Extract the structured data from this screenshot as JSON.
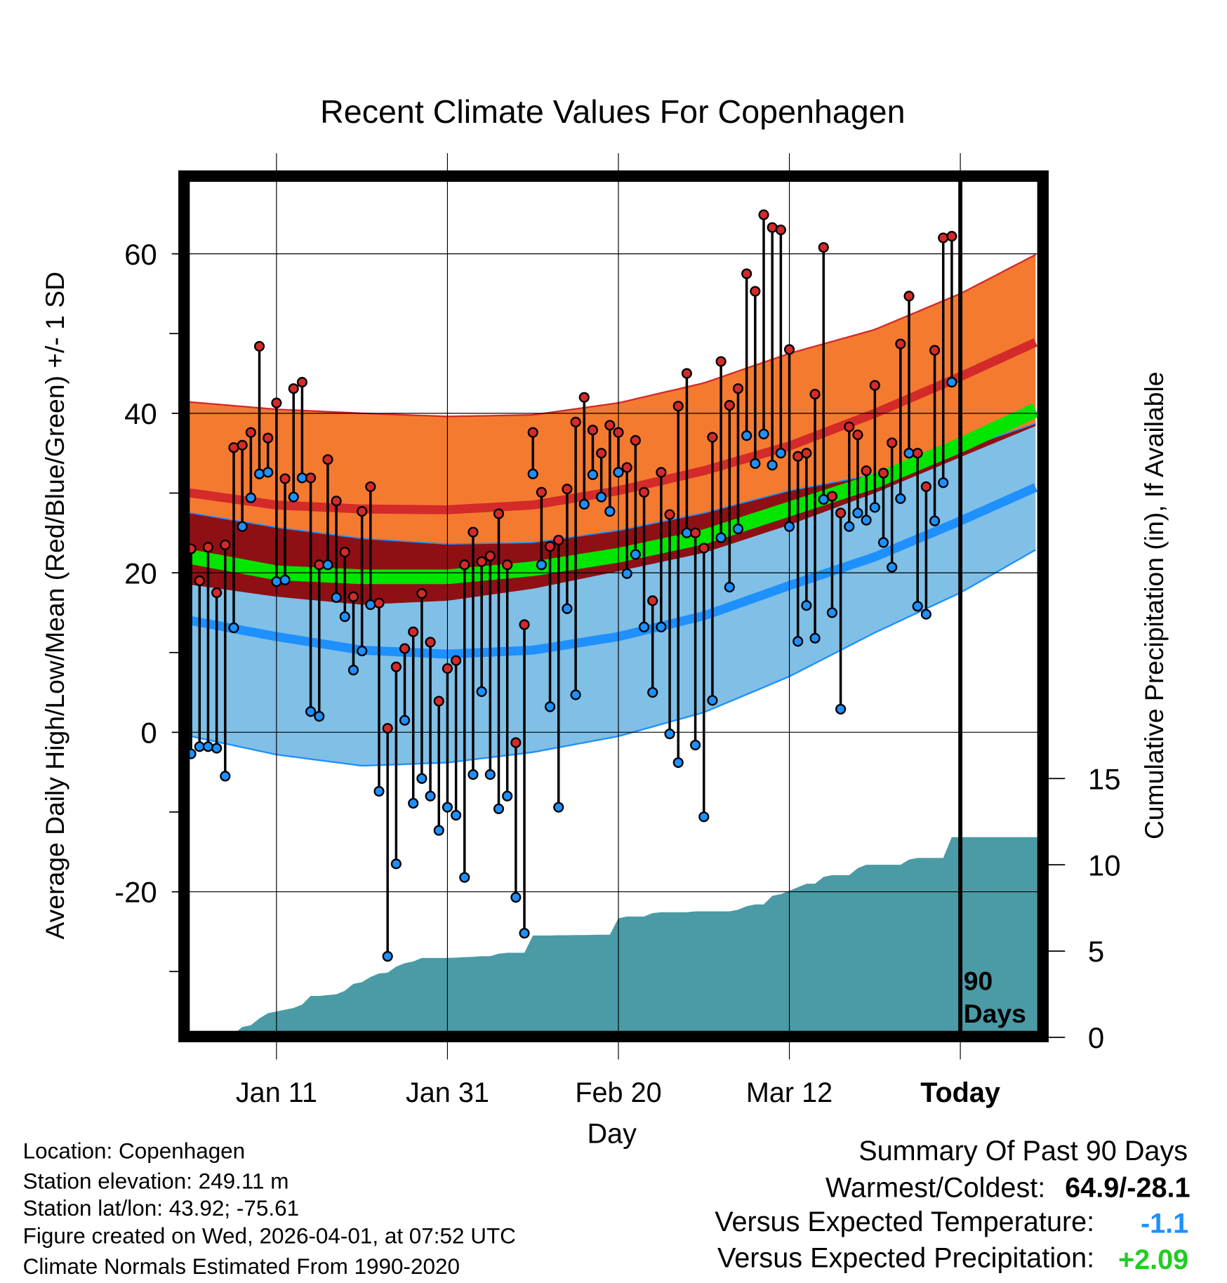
{
  "chart_data": {
    "type": "line",
    "title": "Recent Climate Values For Copenhagen",
    "xlabel": "Day",
    "ylabel": "Average Daily High/Low/Mean (Red/Blue/Green) +/- 1 SD",
    "y2label": "Cumulative Precipitation (in), If Available",
    "ylim": [
      -37.5,
      69
    ],
    "y2lim": [
      0,
      50
    ],
    "grid": true,
    "x_ticks": [
      {
        "day": 10,
        "label": "Jan 11"
      },
      {
        "day": 30,
        "label": "Jan 31"
      },
      {
        "day": 50,
        "label": "Feb 20"
      },
      {
        "day": 70,
        "label": "Mar 12"
      },
      {
        "day": 90,
        "label": "Today"
      }
    ],
    "y_ticks": [
      {
        "value": 60,
        "label": "60"
      },
      {
        "value": 40,
        "label": "40"
      },
      {
        "value": 20,
        "label": "20"
      },
      {
        "value": 0,
        "label": "0"
      },
      {
        "value": -20,
        "label": "-20"
      }
    ],
    "y_minor_ticks": [
      50,
      30,
      10,
      -10,
      -30
    ],
    "y2_ticks": [
      {
        "value": 0,
        "label": "0"
      },
      {
        "value": 5,
        "label": "5"
      },
      {
        "value": 10,
        "label": "10"
      },
      {
        "value": 15,
        "label": "15"
      }
    ],
    "today_label": [
      "90",
      "Days"
    ],
    "highs": [
      23,
      19,
      23.2,
      17.5,
      23.5,
      35.7,
      36,
      37.6,
      48.4,
      36.9,
      41.3,
      31.8,
      43.1,
      43.9,
      31.9,
      21,
      34.2,
      29,
      22.6,
      17,
      27.7,
      30.8,
      16.2,
      0.5,
      8.2,
      10.5,
      12.6,
      17.4,
      11.3,
      3.9,
      8,
      9,
      21,
      25.1,
      21.4,
      22.1,
      27.4,
      21,
      -1.3,
      13.5,
      37.6,
      30.1,
      23.3,
      24.1,
      30.5,
      38.9,
      42,
      37.9,
      35,
      38.5,
      37.6,
      33.2,
      36.6,
      30.1,
      16.5,
      32.6,
      27.3,
      40.9,
      45,
      25,
      23.1,
      37,
      46.5,
      41,
      43.1,
      57.5,
      55.3,
      64.9,
      63.3,
      63,
      48,
      34.6,
      35,
      42.4,
      60.8,
      29.6,
      27.5,
      38.3,
      37.3,
      32.8,
      43.5,
      32.5,
      36.3,
      48.7,
      54.7,
      35,
      30.8,
      47.9,
      62,
      62.2
    ],
    "lows": [
      -2.7,
      -1.8,
      -1.8,
      -2,
      -5.5,
      13.1,
      25.8,
      29.4,
      32.4,
      32.6,
      18.9,
      19.1,
      29.5,
      31.9,
      2.6,
      2,
      21,
      16.9,
      14.5,
      7.8,
      10.2,
      16,
      -7.4,
      -28.1,
      -16.5,
      1.5,
      -8.9,
      -5.8,
      -8,
      -12.3,
      -9.4,
      -10.4,
      -18.2,
      -5.3,
      5.1,
      -5.3,
      -9.6,
      -8,
      -20.7,
      -25.2,
      32.4,
      21,
      3.2,
      -9.4,
      15.5,
      4.7,
      28.6,
      32.3,
      29.5,
      27.7,
      32.6,
      19.9,
      22.3,
      13.2,
      5,
      13.2,
      -0.2,
      -3.8,
      25,
      -1.6,
      -10.6,
      4,
      24.4,
      18.2,
      25.5,
      37.2,
      33.7,
      37.4,
      33.5,
      35,
      25.8,
      11.4,
      15.9,
      11.8,
      29.2,
      15,
      2.9,
      25.8,
      27.5,
      26.6,
      28.2,
      23.8,
      20.7,
      29.3,
      35,
      15.8,
      14.8,
      26.5,
      31.3,
      43.9
    ],
    "precip_cumulative": [
      0,
      0,
      0,
      0,
      0,
      0.2,
      0.6,
      0.7,
      1.1,
      1.4,
      1.5,
      1.6,
      1.7,
      1.9,
      2.4,
      2.4,
      2.45,
      2.5,
      2.7,
      3.1,
      3.2,
      3.5,
      3.7,
      3.75,
      4.1,
      4.3,
      4.4,
      4.6,
      4.6,
      4.6,
      4.6,
      4.62,
      4.65,
      4.67,
      4.7,
      4.7,
      4.85,
      4.9,
      4.9,
      4.9,
      5.9,
      5.9,
      5.9,
      5.92,
      5.92,
      5.93,
      5.93,
      5.94,
      5.95,
      5.95,
      6.9,
      7.0,
      7.0,
      7.0,
      7.2,
      7.25,
      7.25,
      7.25,
      7.25,
      7.3,
      7.3,
      7.3,
      7.3,
      7.3,
      7.4,
      7.6,
      7.7,
      7.7,
      8.2,
      8.3,
      8.5,
      8.7,
      8.9,
      8.9,
      9.3,
      9.4,
      9.4,
      9.4,
      9.8,
      10.0,
      10.0,
      10.0,
      10.0,
      10.0,
      10.3,
      10.4,
      10.4,
      10.4,
      10.4,
      11.6
    ],
    "normals": {
      "days": [
        0,
        10,
        20,
        30,
        40,
        50,
        60,
        70,
        80,
        90,
        99
      ],
      "high_mean": [
        30,
        28.5,
        28,
        27.9,
        28.5,
        30.3,
        32.8,
        35.9,
        40,
        44.6,
        49
      ],
      "high_upper": [
        41.4,
        40.5,
        40,
        39.6,
        39.8,
        41.3,
        43.8,
        47.5,
        50.5,
        55,
        60
      ],
      "high_lower": [
        18.5,
        17,
        16,
        16.5,
        18,
        20.2,
        22.5,
        26,
        30,
        34.5,
        38.5
      ],
      "mean": [
        22,
        20,
        19.5,
        19.5,
        20.5,
        22.2,
        24.5,
        28,
        31.5,
        36,
        40.5
      ],
      "low_upper": [
        27.5,
        25.7,
        24.3,
        23.6,
        23.8,
        25.3,
        27.5,
        30.3,
        32.3,
        35.5,
        38.8
      ],
      "low_mean": [
        14,
        12,
        10.3,
        9.8,
        10.3,
        12,
        14.6,
        18.4,
        22,
        26.5,
        30.8
      ],
      "low_lower": [
        -0.5,
        -2.8,
        -4.2,
        -3.8,
        -2.5,
        -0.5,
        2.5,
        7,
        12.5,
        17.5,
        23
      ]
    },
    "colors": {
      "high_band": "#F47A30",
      "overlap_band": "#8E1015",
      "high_line": "#D42A2A",
      "mean_line": "#00E600",
      "low_band": "#80BFE6",
      "low_line": "#1E90FF",
      "precip": "#4A9BA5",
      "high_marker": "#D42A2A",
      "low_marker": "#1E90FF"
    }
  },
  "footer": {
    "location": "Location: Copenhagen",
    "elevation": "Station elevation: 249.11 m",
    "latlon": "Station lat/lon: 43.92; -75.61",
    "created": "Figure created on Wed, 2026-04-01, at 07:52 UTC",
    "normals": "Climate Normals Estimated From 1990-2020"
  },
  "summary": {
    "title": "Summary Of Past 90 Days",
    "warmest_label": "Warmest/Coldest:",
    "warmest_value": "64.9/-28.1",
    "temp_label": "Versus Expected Temperature:",
    "temp_value": "-1.1",
    "temp_color": "#1E90FF",
    "precip_label": "Versus Expected Precipitation:",
    "precip_value": "+2.09",
    "precip_color": "#22CC22"
  }
}
